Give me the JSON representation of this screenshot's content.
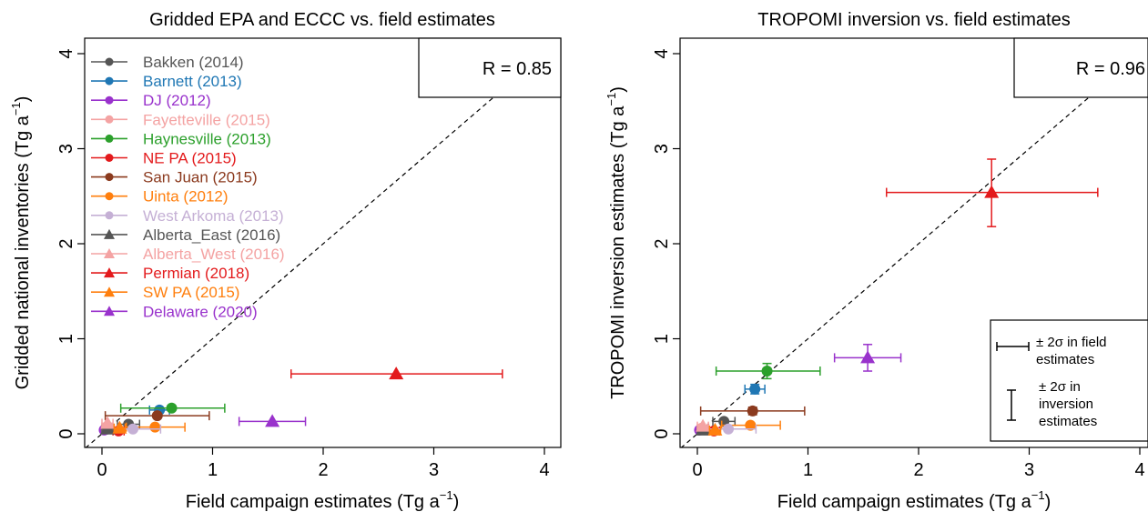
{
  "chart_data": [
    {
      "type": "scatter",
      "title": "Gridded EPA and ECCC vs. field estimates",
      "xlabel": "Field campaign estimates (Tg a",
      "xlabel_sup": "−1",
      "xlabel_end": ")",
      "ylabel": "Gridded national inventories (Tg a",
      "ylabel_sup": "−1",
      "ylabel_end": ")",
      "xlim": [
        -0.15,
        4.15
      ],
      "ylim": [
        -0.15,
        4.15
      ],
      "xticks": [
        0,
        1,
        2,
        3,
        4
      ],
      "yticks": [
        0,
        1,
        2,
        3,
        4
      ],
      "one_to_one_line": true,
      "annotation": "R = 0.85",
      "legend_position": "top-left",
      "series": [
        {
          "name": "Bakken (2014)",
          "color": "#555555",
          "marker": "circle",
          "x": 0.24,
          "y": 0.1,
          "xerr": [
            0.14,
            0.34
          ]
        },
        {
          "name": "Barnett (2013)",
          "color": "#1f77b4",
          "marker": "circle",
          "x": 0.52,
          "y": 0.25,
          "xerr": [
            0.43,
            0.61
          ]
        },
        {
          "name": "DJ (2012)",
          "color": "#9932cc",
          "marker": "circle",
          "x": 0.02,
          "y": 0.04,
          "xerr": [
            0.0,
            0.05
          ]
        },
        {
          "name": "Fayetteville (2015)",
          "color": "#f4a3a3",
          "marker": "circle",
          "x": 0.04,
          "y": 0.07,
          "xerr": [
            0.0,
            0.09
          ]
        },
        {
          "name": "Haynesville (2013)",
          "color": "#2ca02c",
          "marker": "circle",
          "x": 0.63,
          "y": 0.27,
          "xerr": [
            0.17,
            1.11
          ]
        },
        {
          "name": "NE PA (2015)",
          "color": "#e31a1c",
          "marker": "circle",
          "x": 0.15,
          "y": 0.03,
          "xerr": [
            0.1,
            0.2
          ]
        },
        {
          "name": "San Juan (2015)",
          "color": "#8b3a1e",
          "marker": "circle",
          "x": 0.5,
          "y": 0.19,
          "xerr": [
            0.03,
            0.97
          ]
        },
        {
          "name": "Uinta (2012)",
          "color": "#ff7f0e",
          "marker": "circle",
          "x": 0.48,
          "y": 0.07,
          "xerr": [
            0.22,
            0.75
          ]
        },
        {
          "name": "West Arkoma (2013)",
          "color": "#c5b0d5",
          "marker": "circle",
          "x": 0.28,
          "y": 0.05,
          "xerr": [
            0.03,
            0.53
          ]
        },
        {
          "name": "Alberta_East (2016)",
          "color": "#555555",
          "marker": "triangle",
          "x": 0.05,
          "y": 0.05,
          "xerr": [
            0.0,
            0.1
          ]
        },
        {
          "name": "Alberta_West (2016)",
          "color": "#f4a3a3",
          "marker": "triangle",
          "x": 0.05,
          "y": 0.11,
          "xerr": [
            0.0,
            0.1
          ]
        },
        {
          "name": "Permian (2018)",
          "color": "#e31a1c",
          "marker": "triangle",
          "x": 2.66,
          "y": 0.63,
          "xerr": [
            1.71,
            3.62
          ]
        },
        {
          "name": "SW PA (2015)",
          "color": "#ff7f0e",
          "marker": "triangle",
          "x": 0.16,
          "y": 0.06,
          "xerr": [
            0.11,
            0.21
          ]
        },
        {
          "name": "Delaware (2020)",
          "color": "#9932cc",
          "marker": "triangle",
          "x": 1.54,
          "y": 0.13,
          "xerr": [
            1.24,
            1.84
          ]
        }
      ]
    },
    {
      "type": "scatter",
      "title": "TROPOMI inversion vs. field estimates",
      "xlabel": "Field campaign estimates (Tg a",
      "xlabel_sup": "−1",
      "xlabel_end": ")",
      "ylabel": "TROPOMI inversion estimates (Tg a",
      "ylabel_sup": "−1",
      "ylabel_end": ")",
      "xlim": [
        -0.15,
        4.15
      ],
      "ylim": [
        -0.15,
        4.15
      ],
      "xticks": [
        0,
        1,
        2,
        3,
        4
      ],
      "yticks": [
        0,
        1,
        2,
        3,
        4
      ],
      "one_to_one_line": true,
      "annotation": "R = 0.96",
      "error_legend": {
        "field": "± 2σ in field estimates",
        "field_lines": [
          "± 2σ in field",
          "estimates"
        ],
        "inversion": "± 2σ in inversion estimates",
        "inversion_lines": [
          "± 2σ in",
          "inversion",
          "estimates"
        ]
      },
      "series": [
        {
          "name": "Bakken (2014)",
          "color": "#555555",
          "marker": "circle",
          "x": 0.24,
          "y": 0.13,
          "xerr": [
            0.14,
            0.34
          ]
        },
        {
          "name": "Barnett (2013)",
          "color": "#1f77b4",
          "marker": "circle",
          "x": 0.52,
          "y": 0.47,
          "xerr": [
            0.43,
            0.61
          ],
          "yerr": [
            0.42,
            0.52
          ]
        },
        {
          "name": "DJ (2012)",
          "color": "#9932cc",
          "marker": "circle",
          "x": 0.02,
          "y": 0.04,
          "xerr": [
            0.0,
            0.05
          ]
        },
        {
          "name": "Fayetteville (2015)",
          "color": "#f4a3a3",
          "marker": "circle",
          "x": 0.04,
          "y": 0.06,
          "xerr": [
            0.0,
            0.09
          ]
        },
        {
          "name": "Haynesville (2013)",
          "color": "#2ca02c",
          "marker": "circle",
          "x": 0.63,
          "y": 0.66,
          "xerr": [
            0.17,
            1.11
          ],
          "yerr": [
            0.58,
            0.74
          ]
        },
        {
          "name": "NE PA (2015)",
          "color": "#e31a1c",
          "marker": "circle",
          "x": 0.15,
          "y": 0.03,
          "xerr": [
            0.1,
            0.2
          ]
        },
        {
          "name": "San Juan (2015)",
          "color": "#8b3a1e",
          "marker": "circle",
          "x": 0.5,
          "y": 0.24,
          "xerr": [
            0.03,
            0.97
          ],
          "yerr": [
            0.2,
            0.28
          ]
        },
        {
          "name": "Uinta (2012)",
          "color": "#ff7f0e",
          "marker": "circle",
          "x": 0.48,
          "y": 0.09,
          "xerr": [
            0.22,
            0.75
          ]
        },
        {
          "name": "West Arkoma (2013)",
          "color": "#c5b0d5",
          "marker": "circle",
          "x": 0.28,
          "y": 0.05,
          "xerr": [
            0.03,
            0.53
          ]
        },
        {
          "name": "Alberta_East (2016)",
          "color": "#555555",
          "marker": "triangle",
          "x": 0.05,
          "y": 0.04,
          "xerr": [
            0.0,
            0.1
          ]
        },
        {
          "name": "Alberta_West (2016)",
          "color": "#f4a3a3",
          "marker": "triangle",
          "x": 0.05,
          "y": 0.08,
          "xerr": [
            0.0,
            0.1
          ]
        },
        {
          "name": "Permian (2018)",
          "color": "#e31a1c",
          "marker": "triangle",
          "x": 2.66,
          "y": 2.54,
          "xerr": [
            1.71,
            3.62
          ],
          "yerr": [
            2.18,
            2.89
          ]
        },
        {
          "name": "SW PA (2015)",
          "color": "#ff7f0e",
          "marker": "triangle",
          "x": 0.16,
          "y": 0.04,
          "xerr": [
            0.11,
            0.21
          ]
        },
        {
          "name": "Delaware (2020)",
          "color": "#9932cc",
          "marker": "triangle",
          "x": 1.54,
          "y": 0.8,
          "xerr": [
            1.24,
            1.84
          ],
          "yerr": [
            0.66,
            0.94
          ]
        }
      ]
    }
  ]
}
